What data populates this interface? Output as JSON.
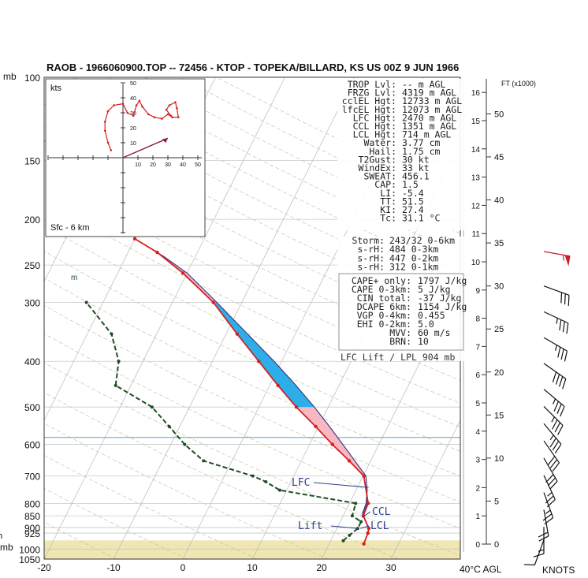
{
  "title": "RAOB - 1966060900.TOP -- 72456 - KTOP - TOPEKA/BILLARD, KS US 00Z 9 JUN 1966",
  "axis": {
    "pressure_unit": "mb",
    "temp_unit": "40°C AGL",
    "height_unit": "FT (x1000)",
    "wind_unit": "KNOTS",
    "temp_ticks": [
      -20,
      -10,
      0,
      10,
      20,
      30
    ],
    "pressure_ticks": [
      100,
      150,
      200,
      250,
      300,
      400,
      500,
      600,
      700,
      800,
      850,
      900,
      925,
      1000,
      1050
    ],
    "ft_ticks": [
      0,
      5,
      10,
      15,
      20,
      25,
      30,
      35,
      40,
      45,
      50
    ],
    "km_ticks": [
      0,
      1,
      2,
      3,
      4,
      5,
      6,
      7,
      8,
      9,
      10,
      11,
      12,
      13,
      14,
      15,
      16
    ],
    "mixing_label": "m",
    "left_edge_label": "h",
    "left_edge_label_2": "mb"
  },
  "hodograph": {
    "unit": "kts",
    "caption": "Sfc - 6 km",
    "ticks": [
      10,
      20,
      30,
      40,
      50
    ],
    "points": [
      [
        -8,
        5
      ],
      [
        -10,
        10
      ],
      [
        -12,
        18
      ],
      [
        -12,
        24
      ],
      [
        -10,
        31
      ],
      [
        -6,
        35
      ],
      [
        0,
        36
      ],
      [
        3,
        30
      ],
      [
        7,
        28
      ],
      [
        9,
        35
      ],
      [
        11,
        38
      ],
      [
        13,
        34
      ],
      [
        17,
        29
      ],
      [
        21,
        27
      ],
      [
        26,
        26
      ],
      [
        30,
        29
      ],
      [
        33,
        27
      ],
      [
        37,
        27
      ],
      [
        36,
        33
      ],
      [
        35,
        37
      ],
      [
        31,
        35
      ],
      [
        29,
        32
      ],
      [
        32,
        28
      ]
    ],
    "storm_motion": [
      30,
      13
    ]
  },
  "stats": [
    [
      "TROP Lvl:",
      "-- m AGL"
    ],
    [
      "FRZG Lvl:",
      "4319 m AGL"
    ],
    [
      "cclEL Hgt:",
      "12733 m AGL"
    ],
    [
      "lfcEL Hgt:",
      "12073 m AGL"
    ],
    [
      "LFC Hgt:",
      "2470 m AGL"
    ],
    [
      "CCL Hgt:",
      "1351 m AGL"
    ],
    [
      "LCL Hgt:",
      "714 m AGL"
    ],
    [
      "Water:",
      "3.77 cm"
    ],
    [
      "Hail:",
      "1.75 cm"
    ],
    [
      "T2Gust:",
      "30 kt"
    ],
    [
      "WindEx:",
      "33 kt"
    ],
    [
      "SWEAT:",
      "456.1"
    ],
    [
      "CAP:",
      "1.5"
    ],
    [
      "LI:",
      "-5.4"
    ],
    [
      "TT:",
      "51.5"
    ],
    [
      "KI:",
      "27.4"
    ],
    [
      "Tc:",
      "31.1 °C"
    ]
  ],
  "storm_stats": [
    [
      "Storm:",
      "243/32 0-6km"
    ],
    [
      "s-rH:",
      "484  0-3km"
    ],
    [
      "s-rH:",
      "447  0-2km"
    ],
    [
      "s-rH:",
      "312  0-1km"
    ]
  ],
  "cape_stats": [
    [
      "CAPE+ only:",
      "1797 J/kg"
    ],
    [
      "CAPE 0-3km:",
      "5 J/kg"
    ],
    [
      "CIN total:",
      "-37 J/kg"
    ],
    [
      "DCAPE 6km:",
      "1154 J/kg"
    ],
    [
      "VGP 0-4km:",
      "0.455"
    ],
    [
      "EHI 0-2km:",
      "5.0"
    ],
    [
      "MVV:",
      "60 m/s"
    ],
    [
      "BRN:",
      "10"
    ]
  ],
  "lift_note": "LFC Lift / LPL 904 mb",
  "level_labels": {
    "lfc": "LFC",
    "ccl": "CCL",
    "lcl": "LCL",
    "lift": "Lift"
  },
  "colors": {
    "temperature": "#d42020",
    "dewpoint": "#1d4d24",
    "cape": "#f7b8c4",
    "cape_core": "#2eaee8",
    "parcel": "#3f3f86",
    "ground": "#efe6b4",
    "freezing": "#55a6d6",
    "labels": "#2a3e8c"
  },
  "chart_data": {
    "type": "line",
    "title": "RAOB - 1966060900.TOP -- 72456 - KTOP - TOPEKA/BILLARD, KS US 00Z 9 JUN 1966",
    "xlabel": "40°C AGL",
    "ylabel": "mb",
    "xlim": [
      -20,
      40
    ],
    "ylim": [
      1050,
      100
    ],
    "y_scale": "log",
    "grid": true,
    "series": [
      {
        "points": [
          [
            904,
            24.6
          ],
          [
            925,
            24.8
          ],
          [
            975,
            25.0
          ],
          [
            850,
            22.9
          ],
          [
            800,
            22.7
          ],
          [
            700,
            20.1
          ],
          [
            650,
            16.9
          ],
          [
            600,
            13.3
          ],
          [
            550,
            9.6
          ],
          [
            500,
            5.4
          ],
          [
            450,
            1.2
          ],
          [
            400,
            -3.3
          ],
          [
            350,
            -8.4
          ],
          [
            300,
            -14.1
          ],
          [
            260,
            -20.6
          ],
          [
            235,
            -25.8
          ],
          [
            220,
            -30.0
          ]
        ]
      },
      {
        "points": [
          [
            960,
            21.8
          ],
          [
            935,
            22.3
          ],
          [
            904,
            23.0
          ],
          [
            875,
            23.0
          ],
          [
            850,
            21.3
          ],
          [
            800,
            20.9
          ],
          [
            750,
            9.0
          ],
          [
            720,
            6.4
          ],
          [
            700,
            4.1
          ],
          [
            650,
            -4.1
          ],
          [
            600,
            -8.0
          ],
          [
            550,
            -11.5
          ],
          [
            500,
            -15.4
          ],
          [
            450,
            -22.2
          ],
          [
            400,
            -23.5
          ],
          [
            350,
            -26.5
          ],
          [
            300,
            -32.4
          ]
        ]
      },
      {
        "points": [
          [
            904,
            24.6
          ],
          [
            870,
            23.5
          ],
          [
            840,
            22.6
          ],
          [
            800,
            22.4
          ],
          [
            750,
            21.6
          ],
          [
            700,
            20.4
          ],
          [
            650,
            17.7
          ],
          [
            600,
            14.8
          ],
          [
            550,
            11.6
          ],
          [
            500,
            8.0
          ],
          [
            450,
            3.8
          ],
          [
            400,
            -1.1
          ],
          [
            350,
            -6.9
          ],
          [
            300,
            -13.6
          ],
          [
            260,
            -20.0
          ],
          [
            240,
            -24.5
          ],
          [
            220,
            -30.0
          ]
        ]
      }
    ],
    "levels_mb": {
      "lfc": 740,
      "ccl": 857,
      "lcl": 904,
      "freezing": 580,
      "lifted_parcel": 904
    },
    "winds": [
      {
        "ft": 0.5,
        "dir": 160,
        "spd": 10
      },
      {
        "ft": 2,
        "dir": 180,
        "spd": 15
      },
      {
        "ft": 4,
        "dir": 190,
        "spd": 20
      },
      {
        "ft": 6,
        "dir": 200,
        "spd": 25
      },
      {
        "ft": 8,
        "dir": 205,
        "spd": 25
      },
      {
        "ft": 10,
        "dir": 210,
        "spd": 30
      },
      {
        "ft": 12,
        "dir": 215,
        "spd": 30
      },
      {
        "ft": 14,
        "dir": 220,
        "spd": 35
      },
      {
        "ft": 16,
        "dir": 225,
        "spd": 35
      },
      {
        "ft": 18,
        "dir": 230,
        "spd": 35
      },
      {
        "ft": 21,
        "dir": 235,
        "spd": 40
      },
      {
        "ft": 24,
        "dir": 240,
        "spd": 35
      },
      {
        "ft": 27,
        "dir": 245,
        "spd": 35
      },
      {
        "ft": 30,
        "dir": 250,
        "spd": 30
      },
      {
        "ft": 34,
        "dir": 260,
        "spd": 55
      }
    ]
  }
}
